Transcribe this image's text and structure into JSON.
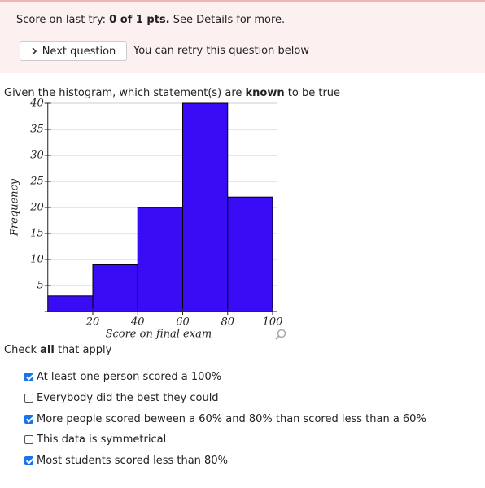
{
  "banner": {
    "prefix": "Score on last try:",
    "score": "0 of 1 pts.",
    "suffix": "See Details for more.",
    "button": "Next question",
    "note": "You can retry this question below"
  },
  "question": {
    "before": "Given the histogram, which statement(s) are",
    "bold": "known",
    "after": "to be true"
  },
  "chart_data": {
    "type": "histogram",
    "bins": [
      0,
      20,
      40,
      60,
      80,
      100
    ],
    "counts": [
      3,
      9,
      20,
      40,
      22
    ],
    "color": "#3a0cf5",
    "xlabel": "Score on final exam",
    "ylabel": "Frequency",
    "xlim": [
      0,
      100
    ],
    "xticks": [
      20,
      40,
      60,
      80,
      100
    ],
    "ylim": [
      0,
      40
    ],
    "yticks": [
      5,
      10,
      15,
      20,
      25,
      30,
      35,
      40
    ],
    "grid": true
  },
  "instruction": {
    "before": "Check",
    "bold": "all",
    "after": "that apply"
  },
  "options": [
    {
      "label": "At least one person scored a 100%",
      "checked": true
    },
    {
      "label": "Everybody did the best they could",
      "checked": false
    },
    {
      "label": "More people scored beween a 60% and 80% than scored less than a 60%",
      "checked": true
    },
    {
      "label": "This data is symmetrical",
      "checked": false
    },
    {
      "label": "Most students scored less than 80%",
      "checked": true
    }
  ]
}
